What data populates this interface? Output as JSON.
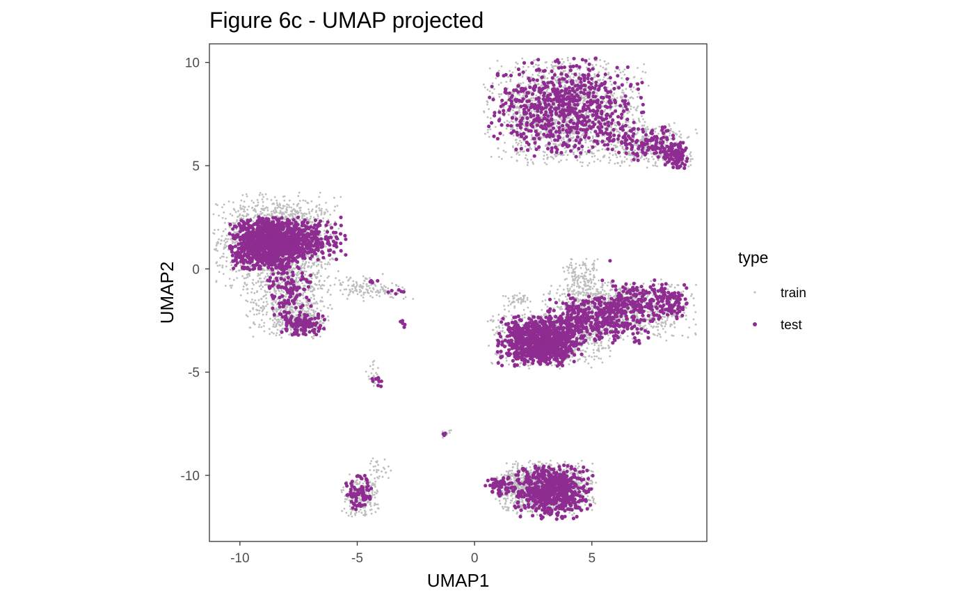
{
  "chart_data": {
    "type": "scatter",
    "title": "Figure 6c - UMAP projected",
    "xlabel": "UMAP1",
    "ylabel": "UMAP2",
    "xlim": [
      -11.3,
      9.9
    ],
    "ylim": [
      -13.2,
      10.9
    ],
    "x_ticks": [
      -10,
      -5,
      0,
      5
    ],
    "x_tick_labels": [
      "-10",
      "-5",
      "0",
      "5"
    ],
    "y_ticks": [
      10,
      5,
      0,
      -5,
      -10
    ],
    "y_tick_labels": [
      "10",
      "5",
      "0",
      "-5",
      "-10"
    ],
    "grid": false,
    "legend": {
      "title": "type",
      "position": "right"
    },
    "series": [
      {
        "name": "train",
        "color": "#bebebe",
        "clusters": [
          {
            "cx": -8.4,
            "cy": 1.4,
            "sx": 1.25,
            "sy": 1.05,
            "n": 1600
          },
          {
            "cx": -8.0,
            "cy": -1.3,
            "sx": 0.9,
            "sy": 0.9,
            "n": 500
          },
          {
            "cx": -7.5,
            "cy": -2.5,
            "sx": 0.6,
            "sy": 0.4,
            "n": 200
          },
          {
            "cx": -5.0,
            "cy": -0.9,
            "sx": 0.6,
            "sy": 0.3,
            "n": 90
          },
          {
            "cx": -3.7,
            "cy": -1.1,
            "sx": 0.6,
            "sy": 0.2,
            "n": 50
          },
          {
            "cx": -4.3,
            "cy": -5.1,
            "sx": 0.15,
            "sy": 0.35,
            "n": 20
          },
          {
            "cx": -1.2,
            "cy": -8.0,
            "sx": 0.1,
            "sy": 0.1,
            "n": 8
          },
          {
            "cx": 3.9,
            "cy": 7.6,
            "sx": 1.6,
            "sy": 1.2,
            "n": 1700
          },
          {
            "cx": 7.5,
            "cy": 6.0,
            "sx": 0.9,
            "sy": 0.5,
            "n": 350
          },
          {
            "cx": 3.2,
            "cy": -3.3,
            "sx": 1.2,
            "sy": 0.7,
            "n": 900
          },
          {
            "cx": 6.2,
            "cy": -2.0,
            "sx": 1.5,
            "sy": 0.7,
            "n": 1000
          },
          {
            "cx": 4.6,
            "cy": -0.5,
            "sx": 0.4,
            "sy": 0.5,
            "n": 150
          },
          {
            "cx": 1.8,
            "cy": -1.5,
            "sx": 0.3,
            "sy": 0.15,
            "n": 40
          },
          {
            "cx": 3.0,
            "cy": -10.6,
            "sx": 1.0,
            "sy": 0.6,
            "n": 1300
          },
          {
            "cx": -4.9,
            "cy": -11.0,
            "sx": 0.4,
            "sy": 0.5,
            "n": 220
          },
          {
            "cx": -4.1,
            "cy": -9.8,
            "sx": 0.3,
            "sy": 0.3,
            "n": 30
          }
        ]
      },
      {
        "name": "test",
        "color": "#8e2c91",
        "clusters": [
          {
            "cx": -8.8,
            "cy": 1.2,
            "sx": 0.75,
            "sy": 0.6,
            "n": 1000
          },
          {
            "cx": -7.2,
            "cy": 1.4,
            "sx": 0.8,
            "sy": 0.5,
            "n": 300
          },
          {
            "cx": -7.9,
            "cy": -1.0,
            "sx": 0.5,
            "sy": 0.7,
            "n": 120
          },
          {
            "cx": -7.3,
            "cy": -2.7,
            "sx": 0.45,
            "sy": 0.25,
            "n": 120
          },
          {
            "cx": -4.4,
            "cy": -0.6,
            "sx": 0.2,
            "sy": 0.2,
            "n": 8
          },
          {
            "cx": -3.3,
            "cy": -1.1,
            "sx": 0.3,
            "sy": 0.1,
            "n": 6
          },
          {
            "cx": -3.0,
            "cy": -2.7,
            "sx": 0.1,
            "sy": 0.1,
            "n": 5
          },
          {
            "cx": -4.1,
            "cy": -5.4,
            "sx": 0.12,
            "sy": 0.15,
            "n": 10
          },
          {
            "cx": -1.3,
            "cy": -8.0,
            "sx": 0.05,
            "sy": 0.05,
            "n": 4
          },
          {
            "cx": 3.9,
            "cy": 7.8,
            "sx": 1.5,
            "sy": 1.1,
            "n": 700
          },
          {
            "cx": 7.2,
            "cy": 6.1,
            "sx": 0.7,
            "sy": 0.4,
            "n": 120
          },
          {
            "cx": 8.5,
            "cy": 5.6,
            "sx": 0.3,
            "sy": 0.35,
            "n": 100
          },
          {
            "cx": 2.8,
            "cy": -3.5,
            "sx": 0.85,
            "sy": 0.55,
            "n": 900
          },
          {
            "cx": 5.3,
            "cy": -2.4,
            "sx": 1.0,
            "sy": 0.55,
            "n": 400
          },
          {
            "cx": 7.0,
            "cy": -1.6,
            "sx": 0.9,
            "sy": 0.5,
            "n": 200
          },
          {
            "cx": 8.4,
            "cy": -1.7,
            "sx": 0.3,
            "sy": 0.5,
            "n": 60
          },
          {
            "cx": 5.8,
            "cy": 0.4,
            "sx": 0.02,
            "sy": 0.02,
            "n": 1
          },
          {
            "cx": 3.3,
            "cy": -10.8,
            "sx": 0.8,
            "sy": 0.6,
            "n": 600
          },
          {
            "cx": 1.1,
            "cy": -10.5,
            "sx": 0.3,
            "sy": 0.25,
            "n": 60
          },
          {
            "cx": -4.9,
            "cy": -10.8,
            "sx": 0.3,
            "sy": 0.5,
            "n": 80
          }
        ]
      }
    ]
  }
}
